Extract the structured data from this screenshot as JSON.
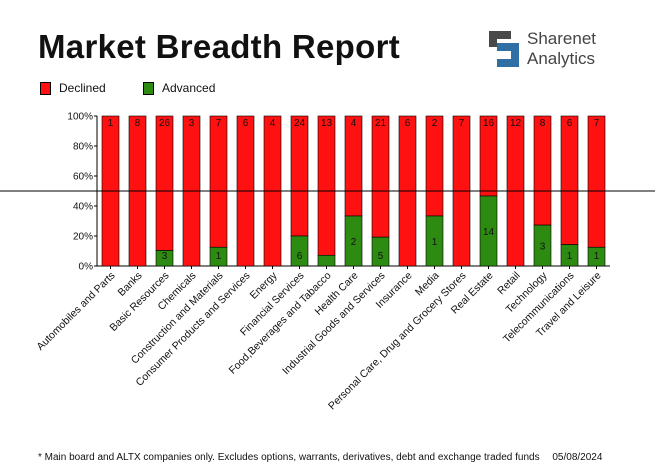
{
  "header": {
    "title": "Market Breadth Report",
    "brand_line1": "Sharenet",
    "brand_line2": "Analytics"
  },
  "colors": {
    "declined": "#ff1111",
    "advanced": "#2e8b12",
    "logo_dark": "#4a4a4a",
    "logo_blue": "#2f6fa3"
  },
  "chart_data": {
    "type": "bar",
    "stacked": "percent",
    "legend_position": "top-left",
    "grid": "horizontal line at 50%",
    "ylim": [
      0,
      100
    ],
    "y_ticks": [
      "0%",
      "20%",
      "40%",
      "60%",
      "80%",
      "100%"
    ],
    "categories": [
      "Automobiles and Parts",
      "Banks",
      "Basic Resources",
      "Chemicals",
      "Construction and Materials",
      "Consumer Products and Services",
      "Energy",
      "Financial Services",
      "Food,Beverages and Tabacco",
      "Health Care",
      "Industrial Goods and Services",
      "Insurance",
      "Media",
      "Personal Care, Drug and Grocery Stores",
      "Real Estate",
      "Retail",
      "Technology",
      "Telecommunications",
      "Travel and Leisure"
    ],
    "series": [
      {
        "name": "Declined",
        "values": [
          1,
          8,
          26,
          3,
          7,
          6,
          4,
          24,
          13,
          4,
          21,
          6,
          2,
          7,
          16,
          12,
          8,
          6,
          7
        ]
      },
      {
        "name": "Advanced",
        "values": [
          0,
          0,
          3,
          0,
          1,
          0,
          0,
          6,
          1,
          2,
          5,
          0,
          1,
          0,
          14,
          0,
          3,
          1,
          1
        ]
      }
    ],
    "advanced_labels": [
      "",
      "",
      "3",
      "",
      "1",
      "",
      "",
      "6",
      "",
      "2",
      "5",
      "",
      "1",
      "",
      "14",
      "",
      "3",
      "1",
      "1"
    ]
  },
  "footer": {
    "note": "* Main board and ALTX companies only. Excludes options, warrants, derivatives, debt and exchange traded funds",
    "date": "05/08/2024"
  }
}
